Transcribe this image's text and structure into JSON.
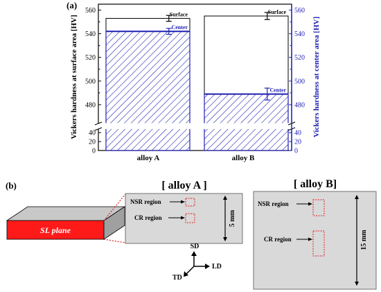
{
  "panel_a": {
    "label": "(a)"
  },
  "panel_b": {
    "label": "(b)",
    "sl_plane_label": "SL plane",
    "alloy_a": {
      "title": "[ alloy A ]",
      "nsr_label": "NSR region",
      "cr_label": "CR region",
      "dimension_label": "5 mm"
    },
    "alloy_b": {
      "title": "[ alloy B]",
      "nsr_label": "NSR region",
      "cr_label": "CR region",
      "dimension_label": "15 mm"
    },
    "axes": {
      "sd": "SD",
      "ld": "LD",
      "td": "TD"
    }
  },
  "colors": {
    "surface": "#000000",
    "center": "#1f1fb4",
    "sl_plane_fill": "#ff1a1a",
    "region_box": "#e02020",
    "sample_fill": "#d9d9d9",
    "break_gap": "#ffffff"
  },
  "chart_data": {
    "type": "bar",
    "categories": [
      "alloy A",
      "alloy B"
    ],
    "series": [
      {
        "name": "Surface",
        "values": [
          553,
          555
        ],
        "errors": [
          2.5,
          3
        ],
        "axis": "left",
        "color": "#000000",
        "style": "open"
      },
      {
        "name": "Center",
        "values": [
          542,
          489
        ],
        "errors": [
          2.5,
          5
        ],
        "axis": "right",
        "color": "#1f1fb4",
        "style": "hatched"
      }
    ],
    "ylabel": "Vickers hardness at surface area [HV]",
    "ylabel_right": "Vickers hardness at center area [HV]",
    "ylim": [
      0,
      565
    ],
    "axis_break": [
      45,
      470
    ],
    "yticks_lower": [
      "0",
      "20",
      "40"
    ],
    "yticks_upper": [
      "480",
      "500",
      "520",
      "540",
      "560"
    ],
    "grid": false
  }
}
